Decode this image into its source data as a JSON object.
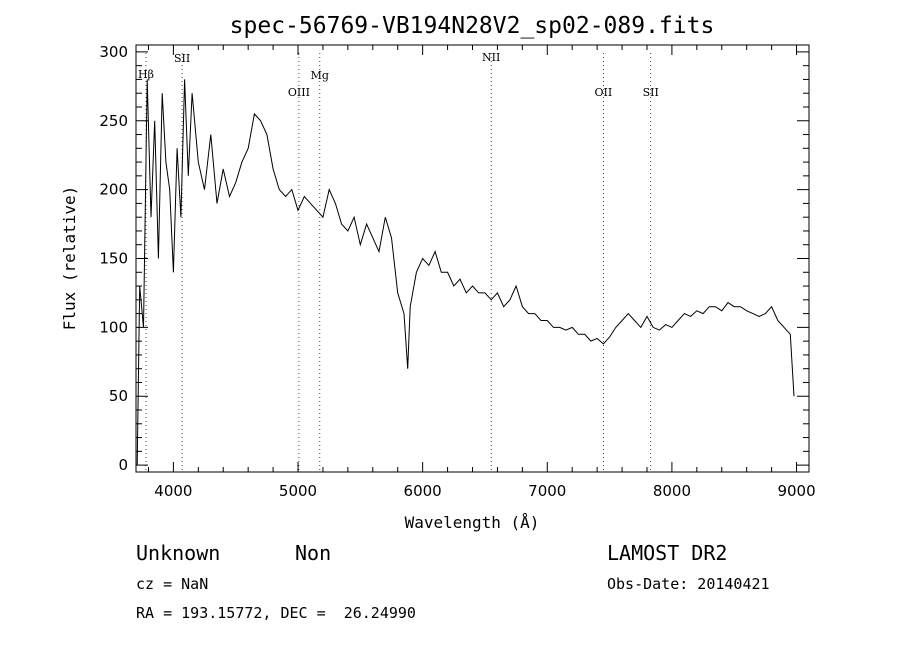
{
  "chart_data": {
    "type": "line",
    "title": "spec-56769-VB194N28V2_sp02-089.fits",
    "xlabel": "Wavelength (Å)",
    "ylabel": "Flux (relative)",
    "xlim": [
      3700,
      9100
    ],
    "ylim": [
      -5,
      305
    ],
    "x_ticks": [
      4000,
      5000,
      6000,
      7000,
      8000,
      9000
    ],
    "y_ticks": [
      0,
      50,
      100,
      150,
      200,
      250,
      300
    ],
    "grid": false,
    "lines": [
      {
        "name": "Hβ",
        "x": 3780
      },
      {
        "name": "SII",
        "x": 4070
      },
      {
        "name": "OIII",
        "x": 5007
      },
      {
        "name": "Mg",
        "x": 5175
      },
      {
        "name": "NII",
        "x": 6550
      },
      {
        "name": "OII",
        "x": 7450
      },
      {
        "name": "SII",
        "x": 7830
      }
    ],
    "series": [
      {
        "x": [
          3710,
          3730,
          3760,
          3790,
          3820,
          3850,
          3880,
          3910,
          3940,
          3970,
          4000,
          4030,
          4060,
          4090,
          4120,
          4150,
          4200,
          4250,
          4300,
          4350,
          4400,
          4450,
          4500,
          4550,
          4600,
          4650,
          4700,
          4750,
          4800,
          4850,
          4900,
          4950,
          5000,
          5050,
          5100,
          5150,
          5200,
          5250,
          5300,
          5350,
          5400,
          5450,
          5500,
          5550,
          5600,
          5650,
          5700,
          5750,
          5800,
          5850,
          5880,
          5900,
          5950,
          6000,
          6050,
          6100,
          6150,
          6200,
          6250,
          6300,
          6350,
          6400,
          6450,
          6500,
          6550,
          6600,
          6650,
          6700,
          6750,
          6800,
          6850,
          6900,
          6950,
          7000,
          7050,
          7100,
          7150,
          7200,
          7250,
          7300,
          7350,
          7400,
          7450,
          7500,
          7550,
          7600,
          7650,
          7700,
          7750,
          7800,
          7850,
          7900,
          7950,
          8000,
          8050,
          8100,
          8150,
          8200,
          8250,
          8300,
          8350,
          8400,
          8450,
          8500,
          8550,
          8600,
          8650,
          8700,
          8750,
          8800,
          8850,
          8900,
          8950,
          8980
        ],
        "y": [
          0,
          130,
          100,
          280,
          180,
          250,
          150,
          270,
          220,
          200,
          140,
          230,
          180,
          280,
          210,
          270,
          220,
          200,
          240,
          190,
          215,
          195,
          205,
          220,
          230,
          255,
          250,
          240,
          215,
          200,
          195,
          200,
          185,
          195,
          190,
          185,
          180,
          200,
          190,
          175,
          170,
          180,
          160,
          175,
          165,
          155,
          180,
          165,
          125,
          110,
          70,
          115,
          140,
          150,
          145,
          155,
          140,
          140,
          130,
          135,
          125,
          130,
          125,
          125,
          120,
          125,
          115,
          120,
          130,
          115,
          110,
          110,
          105,
          105,
          100,
          100,
          98,
          100,
          95,
          95,
          90,
          92,
          88,
          93,
          100,
          105,
          110,
          105,
          100,
          108,
          100,
          98,
          102,
          100,
          105,
          110,
          108,
          112,
          110,
          115,
          115,
          112,
          118,
          115,
          115,
          112,
          110,
          108,
          110,
          115,
          105,
          100,
          95,
          50
        ]
      }
    ]
  },
  "info": {
    "class_label": "Unknown",
    "subclass_label": "Non",
    "survey": "LAMOST DR2",
    "cz": "cz = NaN",
    "obs_date": "Obs-Date: 20140421",
    "coords": "RA = 193.15772, DEC =  26.24990"
  }
}
